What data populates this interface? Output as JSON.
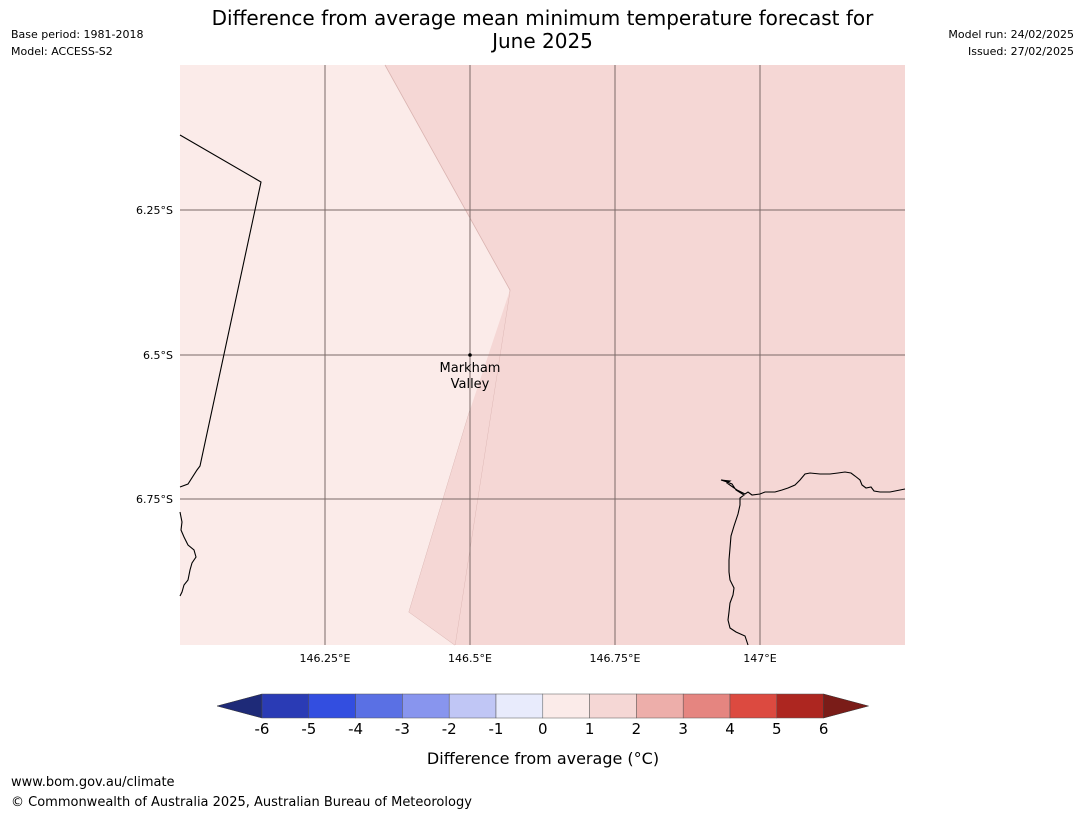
{
  "header": {
    "base_period": "Base period: 1981-2018",
    "model": "Model: ACCESS-S2",
    "model_run": "Model run: 24/02/2025",
    "issued": "Issued: 27/02/2025",
    "title_line1": "Difference from average mean minimum temperature forecast for",
    "title_line2": "June 2025"
  },
  "map": {
    "lat_ticks": [
      "6.25°S",
      "6.5°S",
      "6.75°S"
    ],
    "lon_ticks": [
      "146.25°E",
      "146.5°E",
      "146.75°E",
      "147°E"
    ],
    "location_name_line1": "Markham",
    "location_name_line2": "Valley",
    "region_colors": {
      "band_0_1": "#fbebe9",
      "band_1_2": "#f5d7d5"
    }
  },
  "colorbar": {
    "tick_labels": [
      "-6",
      "-5",
      "-4",
      "-3",
      "-2",
      "-1",
      "0",
      "1",
      "2",
      "3",
      "4",
      "5",
      "6"
    ],
    "colors": [
      "#1e2a78",
      "#2a3bb5",
      "#334ee0",
      "#5a70e4",
      "#8895ee",
      "#c0c6f5",
      "#e8ebfc",
      "#fbebe9",
      "#f5d7d5",
      "#edaeaa",
      "#e58580",
      "#dc4a40",
      "#ad2620",
      "#7a1c18"
    ],
    "label": "Difference from average (°C)"
  },
  "footer": {
    "url": "www.bom.gov.au/climate",
    "copyright": "© Commonwealth of Australia 2025, Australian Bureau of Meteorology"
  }
}
